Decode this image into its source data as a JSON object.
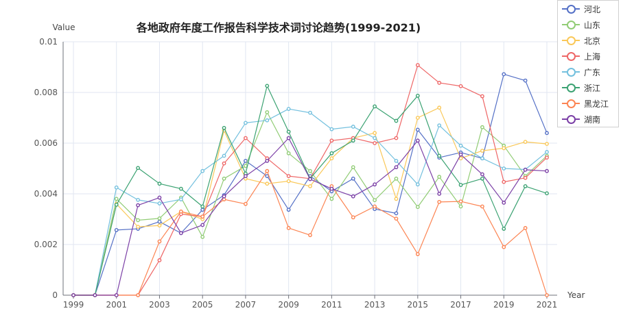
{
  "chart_data": {
    "type": "line",
    "title": "各地政府年度工作报告科学技术词讨论趋势(1999-2021)",
    "xlabel": "Year",
    "ylabel": "Value",
    "ylim": [
      0,
      0.01
    ],
    "yticks": [
      "0",
      "0.002",
      "0.004",
      "0.006",
      "0.008",
      "0.01"
    ],
    "x": [
      1999,
      2000,
      2001,
      2002,
      2003,
      2004,
      2005,
      2006,
      2007,
      2008,
      2009,
      2010,
      2011,
      2012,
      2013,
      2014,
      2015,
      2016,
      2017,
      2018,
      2019,
      2020,
      2021
    ],
    "xtick_labels": [
      "1999",
      "2001",
      "2003",
      "2005",
      "2007",
      "2009",
      "2011",
      "2013",
      "2015",
      "2017",
      "2019",
      "2021"
    ],
    "grid": true,
    "legend_position": "top-right",
    "series": [
      {
        "name": "河北",
        "color": "#5470c6",
        "values": [
          0,
          0,
          0.00257,
          0.00262,
          0.0029,
          0.00245,
          0.00337,
          0.00395,
          0.0053,
          0.0047,
          0.00337,
          0.0047,
          0.0041,
          0.0046,
          0.0034,
          0.00323,
          0.00653,
          0.00543,
          0.00563,
          0.0054,
          0.00872,
          0.00847,
          0.0064
        ]
      },
      {
        "name": "山东",
        "color": "#91cc75",
        "values": [
          0,
          0,
          0.0038,
          0.00296,
          0.00303,
          0.00385,
          0.0023,
          0.0046,
          0.0051,
          0.00722,
          0.0056,
          0.0049,
          0.0038,
          0.00505,
          0.00375,
          0.0046,
          0.00348,
          0.00467,
          0.0035,
          0.00663,
          0.0059,
          0.0047,
          0.0055
        ]
      },
      {
        "name": "北京",
        "color": "#fac858",
        "values": [
          0,
          0,
          0.0036,
          0.0027,
          0.00275,
          0.0033,
          0.003,
          0.0065,
          0.0046,
          0.0044,
          0.0045,
          0.0043,
          0.0054,
          0.0062,
          0.0064,
          0.0038,
          0.007,
          0.0074,
          0.0054,
          0.0057,
          0.0058,
          0.00605,
          0.00597
        ]
      },
      {
        "name": "上海",
        "color": "#ee6666",
        "values": [
          0,
          0,
          0,
          0,
          0.00138,
          0.0032,
          0.0031,
          0.0052,
          0.0062,
          0.0054,
          0.0047,
          0.0046,
          0.0061,
          0.0062,
          0.006,
          0.0062,
          0.00908,
          0.00838,
          0.00825,
          0.00785,
          0.00447,
          0.00463,
          0.00543
        ]
      },
      {
        "name": "广东",
        "color": "#73c0de",
        "values": [
          0,
          0,
          0.00425,
          0.00376,
          0.00362,
          0.00378,
          0.0049,
          0.0055,
          0.0068,
          0.0069,
          0.00735,
          0.0072,
          0.00655,
          0.00665,
          0.0062,
          0.0053,
          0.00437,
          0.0067,
          0.0059,
          0.0054,
          0.005,
          0.00496,
          0.00565
        ]
      },
      {
        "name": "浙江",
        "color": "#3ba272",
        "values": [
          0,
          0,
          0.00357,
          0.00502,
          0.0044,
          0.0042,
          0.0035,
          0.0066,
          0.0048,
          0.00826,
          0.00645,
          0.0046,
          0.0056,
          0.0061,
          0.00745,
          0.00688,
          0.00787,
          0.0055,
          0.00435,
          0.0046,
          0.00262,
          0.0043,
          0.00402
        ]
      },
      {
        "name": "黑龙江",
        "color": "#fc8452",
        "values": [
          0,
          0,
          0,
          0,
          0.00212,
          0.0033,
          0.0031,
          0.00378,
          0.0036,
          0.0049,
          0.00265,
          0.00237,
          0.0043,
          0.00307,
          0.0035,
          0.00302,
          0.00162,
          0.00368,
          0.0037,
          0.0035,
          0.0019,
          0.00265,
          0
        ]
      },
      {
        "name": "湖南",
        "color": "#7b3fa6",
        "values": [
          0,
          0,
          0,
          0.00355,
          0.00385,
          0.00245,
          0.00277,
          0.0039,
          0.0047,
          0.0053,
          0.0062,
          0.00458,
          0.0042,
          0.0039,
          0.00437,
          0.00505,
          0.0061,
          0.004,
          0.00555,
          0.00477,
          0.00365,
          0.00495,
          0.0049
        ]
      }
    ]
  }
}
